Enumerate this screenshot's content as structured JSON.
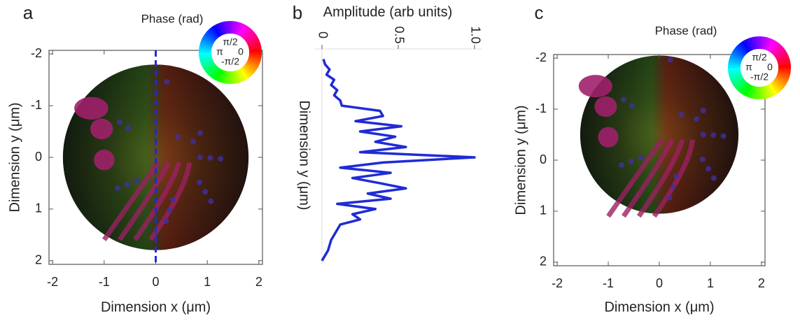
{
  "chart_data": [
    {
      "type": "image",
      "panel": "a",
      "xlabel": "Dimension x (μm)",
      "ylabel": "Dimension y (μm)",
      "xlim": [
        -2.07,
        2.07
      ],
      "ylim": [
        2.07,
        -2.07
      ],
      "xticks": [
        -2,
        -1,
        0,
        1,
        2
      ],
      "yticks": [
        -2,
        -1,
        0,
        1,
        2
      ],
      "cut_x": 0,
      "cut_color": "#1f2bd6",
      "colorwheel": {
        "title": "Phase (rad)",
        "labels": [
          "π/2",
          "π",
          "0",
          "-π/2"
        ]
      }
    },
    {
      "type": "line",
      "panel": "b",
      "xlabel": "Amplitude (arb units)",
      "ylabel": "Dimension y (μm)",
      "xlim": [
        0,
        1
      ],
      "xticks": [
        0,
        0.5,
        {
          "value": 1,
          "label": "1.0"
        }
      ],
      "ylim": [
        2.07,
        -2.07
      ],
      "y": [
        -1.9,
        -1.8,
        -1.7,
        -1.6,
        -1.5,
        -1.4,
        -1.3,
        -1.2,
        -1.1,
        -1.0,
        -0.9,
        -0.8,
        -0.7,
        -0.6,
        -0.5,
        -0.4,
        -0.3,
        -0.2,
        -0.1,
        0,
        0.1,
        0.2,
        0.3,
        0.4,
        0.5,
        0.6,
        0.7,
        0.8,
        0.9,
        1.0,
        1.1,
        1.2,
        1.3,
        1.4,
        1.5,
        1.6,
        1.7,
        1.8,
        1.9,
        2.0
      ],
      "series": [
        {
          "color": "#1f2bd6",
          "values": [
            0.01,
            0.02,
            0.05,
            0.03,
            0.08,
            0.06,
            0.1,
            0.08,
            0.12,
            0.13,
            0.38,
            0.4,
            0.22,
            0.52,
            0.25,
            0.48,
            0.35,
            0.55,
            0.25,
            1.0,
            0.4,
            0.12,
            0.45,
            0.2,
            0.38,
            0.55,
            0.3,
            0.45,
            0.1,
            0.35,
            0.2,
            0.25,
            0.12,
            0.1,
            0.08,
            0.06,
            0.05,
            0.04,
            0.02,
            0.0
          ]
        }
      ]
    },
    {
      "type": "image",
      "panel": "c",
      "xlabel": "Dimension x (μm)",
      "ylabel": "Dimension y (μm)",
      "xlim": [
        -2.07,
        2.07
      ],
      "ylim": [
        2.07,
        -2.07
      ],
      "xticks": [
        -2,
        -1,
        0,
        1,
        2
      ],
      "yticks": [
        -2,
        -1,
        0,
        1,
        2
      ],
      "colorwheel": {
        "title": "Phase (rad)",
        "labels": [
          "π/2",
          "π",
          "0",
          "-π/2"
        ]
      }
    }
  ]
}
